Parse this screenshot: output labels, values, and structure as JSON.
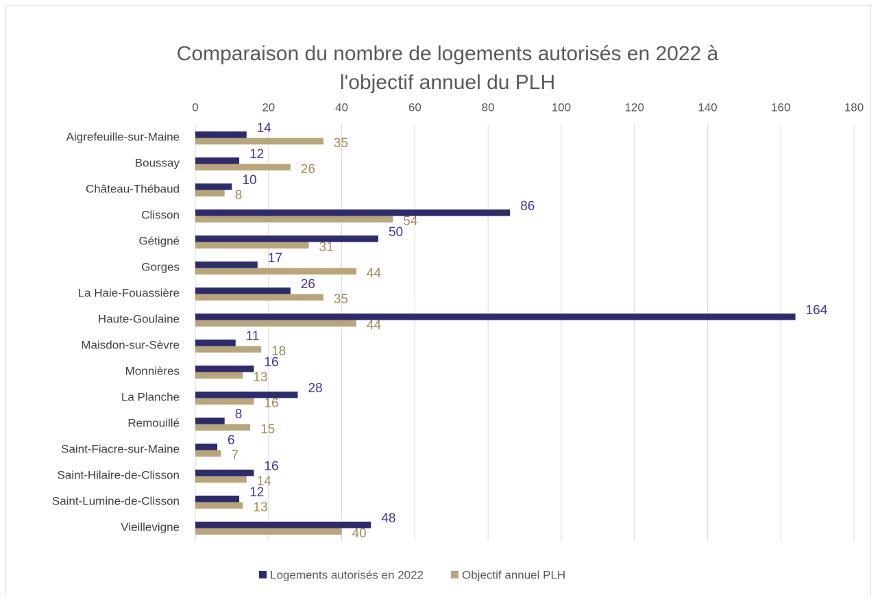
{
  "chart_data": {
    "type": "barh",
    "title": [
      "Comparaison du nombre de logements autorisés en 2022 à",
      "l'objectif annuel du PLH"
    ],
    "categories": [
      "Aigrefeuille-sur-Maine",
      "Boussay",
      "Château-Thébaud",
      "Clisson",
      "Gétigné",
      "Gorges",
      "La Haie-Fouassière",
      "Haute-Goulaine",
      "Maisdon-sur-Sèvre",
      "Monnières",
      "La Planche",
      "Remouillé",
      "Saint-Fiacre-sur-Maine",
      "Saint-Hilaire-de-Clisson",
      "Saint-Lumine-de-Clisson",
      "Vieillevigne"
    ],
    "series": [
      {
        "name": "Logements autorisés en 2022",
        "color": "#2e2a6e",
        "label_color": "#3c36a3",
        "values": [
          14,
          12,
          10,
          86,
          50,
          17,
          26,
          164,
          11,
          16,
          28,
          8,
          6,
          16,
          12,
          48
        ]
      },
      {
        "name": "Objectif annuel PLH",
        "color": "#b8a57a",
        "label_color": "#a08c55",
        "values": [
          35,
          26,
          8,
          54,
          31,
          44,
          35,
          44,
          18,
          13,
          16,
          15,
          7,
          14,
          13,
          40
        ]
      }
    ],
    "xlim": [
      0,
      180
    ],
    "xticks": [
      0,
      20,
      40,
      60,
      80,
      100,
      120,
      140,
      160,
      180
    ],
    "grid": true,
    "legend": "bottom"
  }
}
